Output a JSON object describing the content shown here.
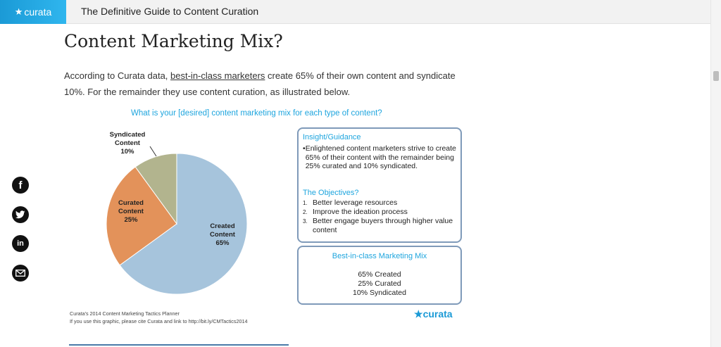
{
  "header": {
    "brand": "curata",
    "title": "The Definitive Guide to Content Curation"
  },
  "article": {
    "heading": "Content Marketing Mix?",
    "intro_before": "According to Curata data, ",
    "intro_link": "best-in-class marketers",
    "intro_after": " create 65% of their own content and syndicate 10%. For the remainder they use content curation, as illustrated below."
  },
  "share": {
    "facebook": "f",
    "linkedin": "in"
  },
  "colors": {
    "created": "#a6c4dc",
    "curated": "#e3925a",
    "syndicated": "#b2b48e",
    "accent": "#1ea5de",
    "box_border": "#7f9ab9"
  },
  "chart_data": {
    "type": "pie",
    "title": "What is your [desired] content marketing mix for each type of content?",
    "slices": [
      {
        "name": "Created Content",
        "line1": "Created",
        "line2": "Content",
        "value": 65,
        "label": "65%"
      },
      {
        "name": "Curated Content",
        "line1": "Curated",
        "line2": "Content",
        "value": 25,
        "label": "25%"
      },
      {
        "name": "Syndicated Content",
        "line1": "Syndicated",
        "line2": "Content",
        "value": 10,
        "label": "10%"
      }
    ]
  },
  "insight": {
    "title": "Insight/Guidance",
    "bullet": "Enlightened content marketers strive to create 65% of their content with the remainder being 25% curated and 10% syndicated.",
    "objectives_title": "The Objectives?",
    "objectives": [
      {
        "num": "1.",
        "text": "Better leverage resources"
      },
      {
        "num": "2.",
        "text": "Improve the ideation process"
      },
      {
        "num": "3.",
        "text": "Better engage buyers through higher value content"
      }
    ]
  },
  "mix": {
    "title": "Best-in-class Marketing Mix",
    "lines": [
      "65% Created",
      "25% Curated",
      "10% Syndicated"
    ]
  },
  "credits": {
    "line1": "Curata's 2014 Content Marketing Tactics Planner",
    "line2": "If you use this graphic, please cite Curata and link to http://bit.ly/CMTactics2014"
  },
  "logo": "curata"
}
